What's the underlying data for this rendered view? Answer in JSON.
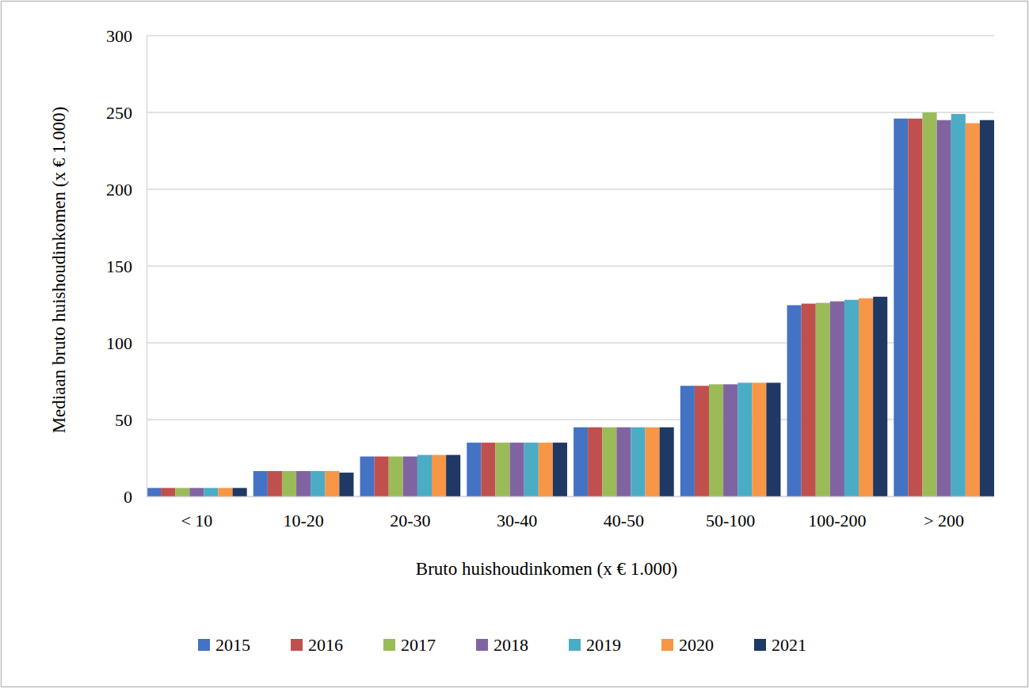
{
  "chart_data": {
    "type": "bar",
    "x_label": "Bruto huishoudinkomen (x € 1.000)",
    "y_label": "Mediaan bruto huishoudinkomen (x € 1.000)",
    "categories": [
      "< 10",
      "10-20",
      "20-30",
      "30-40",
      "40-50",
      "50-100",
      "100-200",
      "> 200"
    ],
    "series": [
      {
        "name": "2015",
        "color": "#4472c4",
        "values": [
          5.5,
          16.5,
          26,
          35,
          45,
          72,
          124.5,
          246
        ]
      },
      {
        "name": "2016",
        "color": "#c0504d",
        "values": [
          5.5,
          16.5,
          26,
          35,
          45,
          72,
          125.5,
          246
        ]
      },
      {
        "name": "2017",
        "color": "#9bbb59",
        "values": [
          5.5,
          16.5,
          26,
          35,
          45,
          73,
          126,
          250
        ]
      },
      {
        "name": "2018",
        "color": "#8064a2",
        "values": [
          5.5,
          16.5,
          26,
          35,
          45,
          73,
          127,
          245
        ]
      },
      {
        "name": "2019",
        "color": "#4bacc6",
        "values": [
          5.5,
          16.5,
          27,
          35,
          45,
          74,
          128,
          249
        ]
      },
      {
        "name": "2020",
        "color": "#f79646",
        "values": [
          5.5,
          16.5,
          27,
          35,
          45,
          74,
          129,
          243
        ]
      },
      {
        "name": "2021",
        "color": "#1f3864",
        "values": [
          5.5,
          15.5,
          27,
          35,
          45,
          74,
          130,
          245
        ]
      }
    ],
    "ylim": [
      0,
      300
    ],
    "yticks": [
      0,
      50,
      100,
      150,
      200,
      250,
      300
    ],
    "grid": true,
    "legend": "bottom"
  }
}
